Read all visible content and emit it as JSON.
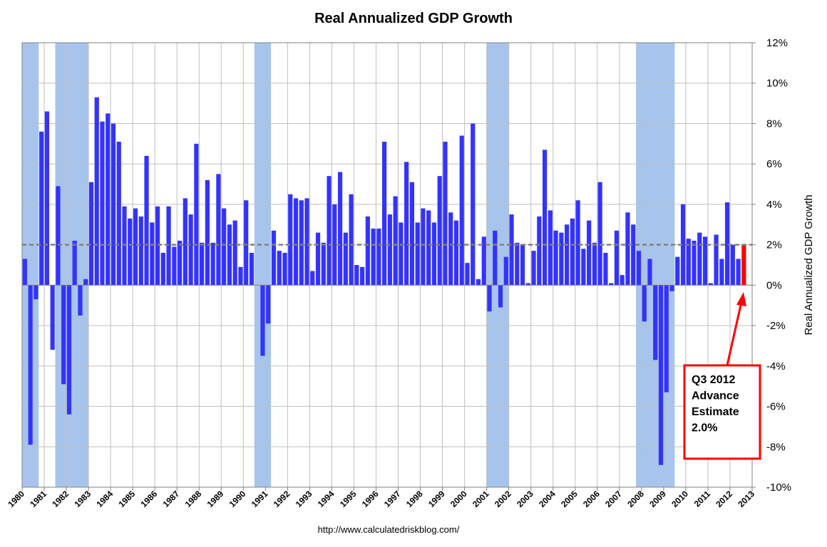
{
  "chart_data": {
    "type": "bar",
    "title": "Real Annualized GDP Growth",
    "y_axis_label": "Real Annualized GDP Growth",
    "source": "http://www.calculatedriskblog.com/",
    "x": [
      1980,
      1980.25,
      1980.5,
      1980.75,
      1981,
      1981.25,
      1981.5,
      1981.75,
      1982,
      1982.25,
      1982.5,
      1982.75,
      1983,
      1983.25,
      1983.5,
      1983.75,
      1984,
      1984.25,
      1984.5,
      1984.75,
      1985,
      1985.25,
      1985.5,
      1985.75,
      1986,
      1986.25,
      1986.5,
      1986.75,
      1987,
      1987.25,
      1987.5,
      1987.75,
      1988,
      1988.25,
      1988.5,
      1988.75,
      1989,
      1989.25,
      1989.5,
      1989.75,
      1990,
      1990.25,
      1990.5,
      1990.75,
      1991,
      1991.25,
      1991.5,
      1991.75,
      1992,
      1992.25,
      1992.5,
      1992.75,
      1993,
      1993.25,
      1993.5,
      1993.75,
      1994,
      1994.25,
      1994.5,
      1994.75,
      1995,
      1995.25,
      1995.5,
      1995.75,
      1996,
      1996.25,
      1996.5,
      1996.75,
      1997,
      1997.25,
      1997.5,
      1997.75,
      1998,
      1998.25,
      1998.5,
      1998.75,
      1999,
      1999.25,
      1999.5,
      1999.75,
      2000,
      2000.25,
      2000.5,
      2000.75,
      2001,
      2001.25,
      2001.5,
      2001.75,
      2002,
      2002.25,
      2002.5,
      2002.75,
      2003,
      2003.25,
      2003.5,
      2003.75,
      2004,
      2004.25,
      2004.5,
      2004.75,
      2005,
      2005.25,
      2005.5,
      2005.75,
      2006,
      2006.25,
      2006.5,
      2006.75,
      2007,
      2007.25,
      2007.5,
      2007.75,
      2008,
      2008.25,
      2008.5,
      2008.75,
      2009,
      2009.25,
      2009.5,
      2009.75,
      2010,
      2010.25,
      2010.5,
      2010.75,
      2011,
      2011.25,
      2011.5,
      2011.75,
      2012,
      2012.25,
      2012.5
    ],
    "values": [
      1.3,
      -7.9,
      -0.7,
      7.6,
      8.6,
      -3.2,
      4.9,
      -4.9,
      -6.4,
      2.2,
      -1.5,
      0.3,
      5.1,
      9.3,
      8.1,
      8.5,
      8.0,
      7.1,
      3.9,
      3.3,
      3.8,
      3.4,
      6.4,
      3.1,
      3.9,
      1.6,
      3.9,
      1.9,
      2.2,
      4.3,
      3.5,
      7.0,
      2.1,
      5.2,
      2.1,
      5.5,
      3.8,
      3.0,
      3.2,
      0.9,
      4.2,
      1.6,
      0.0,
      -3.5,
      -1.9,
      2.7,
      1.7,
      1.6,
      4.5,
      4.3,
      4.2,
      4.3,
      0.7,
      2.6,
      2.1,
      5.4,
      4.0,
      5.6,
      2.6,
      4.5,
      1.0,
      0.9,
      3.4,
      2.8,
      2.8,
      7.1,
      3.5,
      4.4,
      3.1,
      6.1,
      5.1,
      3.1,
      3.8,
      3.7,
      3.1,
      5.4,
      7.1,
      3.6,
      3.2,
      7.4,
      1.1,
      8.0,
      0.3,
      2.4,
      -1.3,
      2.7,
      -1.1,
      1.4,
      3.5,
      2.1,
      2.0,
      0.1,
      1.7,
      3.4,
      6.7,
      3.7,
      2.7,
      2.6,
      3.0,
      3.3,
      4.2,
      1.8,
      3.2,
      2.1,
      5.1,
      1.6,
      0.1,
      2.7,
      0.5,
      3.6,
      3.0,
      1.7,
      -1.8,
      1.3,
      -3.7,
      -8.9,
      -5.3,
      -0.3,
      1.4,
      4.0,
      2.3,
      2.2,
      2.6,
      2.4,
      0.1,
      2.5,
      1.3,
      4.1,
      2.0,
      1.3,
      2.0
    ],
    "color": "#3333ff",
    "highlight_x": 2012.5,
    "highlight_color": "#ff0000",
    "recessions": [
      [
        1980,
        1980.75
      ],
      [
        1981.5,
        1983
      ],
      [
        1990.5,
        1991.25
      ],
      [
        2001,
        2002
      ],
      [
        2007.75,
        2009.5
      ]
    ],
    "recession_color": "#a7c4ec",
    "reference_line": {
      "value": 2,
      "color": "#808080"
    },
    "annotation": [
      "Q3 2012",
      "Advance",
      "Estimate",
      "2.0%"
    ],
    "annotation_color": "#ff0000",
    "xlim": [
      1980,
      2013
    ],
    "xticks": [
      1980,
      1981,
      1982,
      1983,
      1984,
      1985,
      1986,
      1987,
      1988,
      1989,
      1990,
      1991,
      1992,
      1993,
      1994,
      1995,
      1996,
      1997,
      1998,
      1999,
      2000,
      2001,
      2002,
      2003,
      2004,
      2005,
      2006,
      2007,
      2008,
      2009,
      2010,
      2011,
      2012,
      2013
    ],
    "ylim": [
      -10,
      12
    ],
    "yticks": [
      {
        "value": -10,
        "label": "-10%"
      },
      {
        "value": -8,
        "label": "-8%"
      },
      {
        "value": -6,
        "label": "-6%"
      },
      {
        "value": -4,
        "label": "-4%"
      },
      {
        "value": -2,
        "label": "-2%"
      },
      {
        "value": 0,
        "label": "0%"
      },
      {
        "value": 2,
        "label": "2%"
      },
      {
        "value": 4,
        "label": "4%"
      },
      {
        "value": 6,
        "label": "6%"
      },
      {
        "value": 8,
        "label": "8%"
      },
      {
        "value": 10,
        "label": "10%"
      },
      {
        "value": 12,
        "label": "12%"
      }
    ],
    "grid": true,
    "y_axis_side": "right"
  }
}
